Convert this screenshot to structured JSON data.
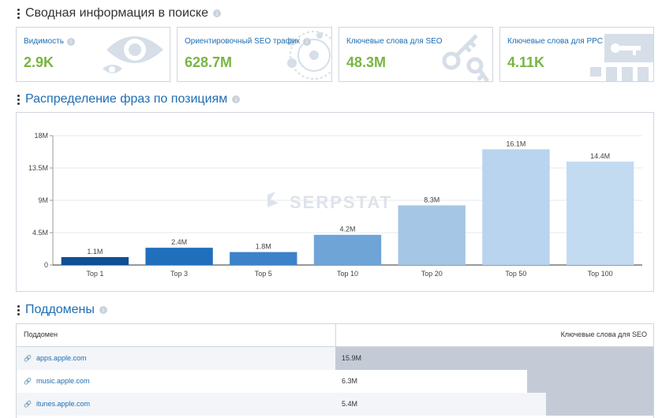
{
  "summary": {
    "title": "Сводная информация в поиске",
    "cards": [
      {
        "label": "Видимость",
        "value": "2.9K",
        "icon": "eye-icon"
      },
      {
        "label": "Ориентировочный SEO трафик",
        "value": "628.7M",
        "icon": "traffic-icon"
      },
      {
        "label": "Ключевые слова для SEO",
        "value": "48.3M",
        "icon": "keys-icon"
      },
      {
        "label": "Ключевые слова для PPC",
        "value": "4.11K",
        "icon": "key-card-icon"
      }
    ]
  },
  "distribution": {
    "title": "Распределение фраз по позициям",
    "watermark": "SERPSTAT"
  },
  "chart_data": {
    "type": "bar",
    "categories": [
      "Top 1",
      "Top 3",
      "Top 5",
      "Top 10",
      "Top 20",
      "Top 50",
      "Top 100"
    ],
    "values": [
      1.1,
      2.4,
      1.8,
      4.2,
      8.3,
      16.1,
      14.4
    ],
    "value_labels": [
      "1.1M",
      "2.4M",
      "1.8M",
      "4.2M",
      "8.3M",
      "16.1M",
      "14.4M"
    ],
    "y_ticks": [
      "0",
      "4.5M",
      "9M",
      "13.5M",
      "18M"
    ],
    "ylim": [
      0,
      18
    ],
    "colors": [
      "#0e4f96",
      "#1f6fbd",
      "#3c82c8",
      "#6fa4d7",
      "#a6c6e6",
      "#b8d4ee",
      "#c3dbf1"
    ],
    "grid": true
  },
  "subdomains": {
    "title": "Поддомены",
    "col_domain": "Поддомен",
    "col_keywords": "Ключевые слова для SEO",
    "rows": [
      {
        "domain": "apps.apple.com",
        "keywords": "15.9M",
        "share": 1.0
      },
      {
        "domain": "music.apple.com",
        "keywords": "6.3M",
        "share": 0.4
      },
      {
        "domain": "itunes.apple.com",
        "keywords": "5.4M",
        "share": 0.34
      }
    ]
  }
}
